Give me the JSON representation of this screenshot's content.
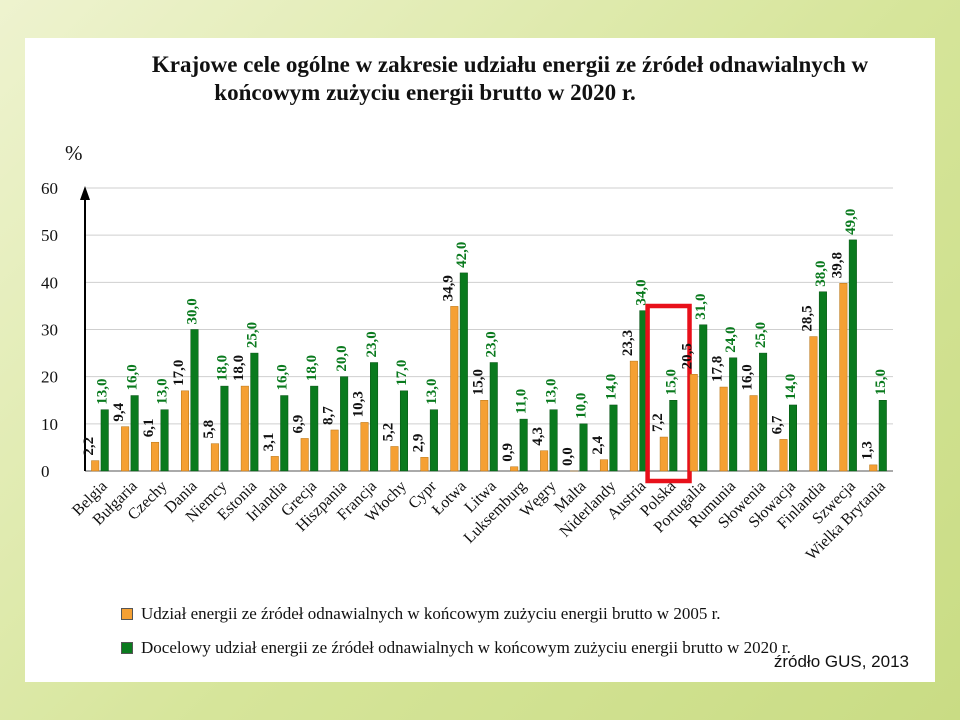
{
  "title": {
    "line1": "Krajowe cele ogólne w zakresie udziału energii ze źródeł odnawialnych w",
    "line2": "końcowym zużyciu energii brutto w 2020 r."
  },
  "source": "źródło GUS, 2013",
  "colors": {
    "orange": "#f5a033",
    "green": "#0a7a1e",
    "highlight": "#e8101a",
    "label_dark": "#111111",
    "label_green": "#0a7a1e"
  },
  "chart_data": {
    "type": "bar",
    "ylabel": "%",
    "ylim": [
      0,
      60
    ],
    "yticks": [
      "0",
      "10",
      "20",
      "30",
      "40",
      "50",
      "60"
    ],
    "grid": true,
    "legend_position": "bottom",
    "highlighted_category": "Polska",
    "categories": [
      "Belgia",
      "Bułgaria",
      "Czechy",
      "Dania",
      "Niemcy",
      "Estonia",
      "Irlandia",
      "Grecja",
      "Hiszpania",
      "Francja",
      "Włochy",
      "Cypr",
      "Łotwa",
      "Litwa",
      "Luksemburg",
      "Węgry",
      "Malta",
      "Niderlandy",
      "Austria",
      "Polska",
      "Portugalia",
      "Rumunia",
      "Słowenia",
      "Słowacja",
      "Finlandia",
      "Szwecja",
      "Wielka Brytania"
    ],
    "series": [
      {
        "name": "Udział energii ze źródeł odnawialnych w końcowym zużyciu energii brutto w 2005 r.",
        "values": [
          2.2,
          9.4,
          6.1,
          17.0,
          5.8,
          18.0,
          3.1,
          6.9,
          8.7,
          10.3,
          5.2,
          2.9,
          34.9,
          15.0,
          0.9,
          4.3,
          0.0,
          2.4,
          23.3,
          7.2,
          20.5,
          17.8,
          16.0,
          6.7,
          28.5,
          39.8,
          1.3
        ],
        "labels": [
          "2,2",
          "9,4",
          "6,1",
          "17,0",
          "5,8",
          "18,0",
          "3,1",
          "6,9",
          "8,7",
          "10,3",
          "5,2",
          "2,9",
          "34,9",
          "15,0",
          "0,9",
          "4,3",
          "0,0",
          "2,4",
          "23,3",
          "7,2",
          "20,5",
          "17,8",
          "16,0",
          "6,7",
          "28,5",
          "39,8",
          "1,3"
        ]
      },
      {
        "name": "Docelowy udział energii ze źródeł odnawialnych w końcowym zużyciu energii brutto w 2020 r.",
        "values": [
          13.0,
          16.0,
          13.0,
          30.0,
          18.0,
          25.0,
          16.0,
          18.0,
          20.0,
          23.0,
          17.0,
          13.0,
          42.0,
          23.0,
          11.0,
          13.0,
          10.0,
          14.0,
          34.0,
          15.0,
          31.0,
          24.0,
          25.0,
          14.0,
          38.0,
          49.0,
          15.0
        ],
        "labels": [
          "13,0",
          "16,0",
          "13,0",
          "30,0",
          "18,0",
          "25,0",
          "16,0",
          "18,0",
          "20,0",
          "23,0",
          "17,0",
          "13,0",
          "42,0",
          "23,0",
          "11,0",
          "13,0",
          "10,0",
          "14,0",
          "34,0",
          "15,0",
          "31,0",
          "24,0",
          "25,0",
          "14,0",
          "38,0",
          "49,0",
          "15,0"
        ]
      }
    ]
  }
}
